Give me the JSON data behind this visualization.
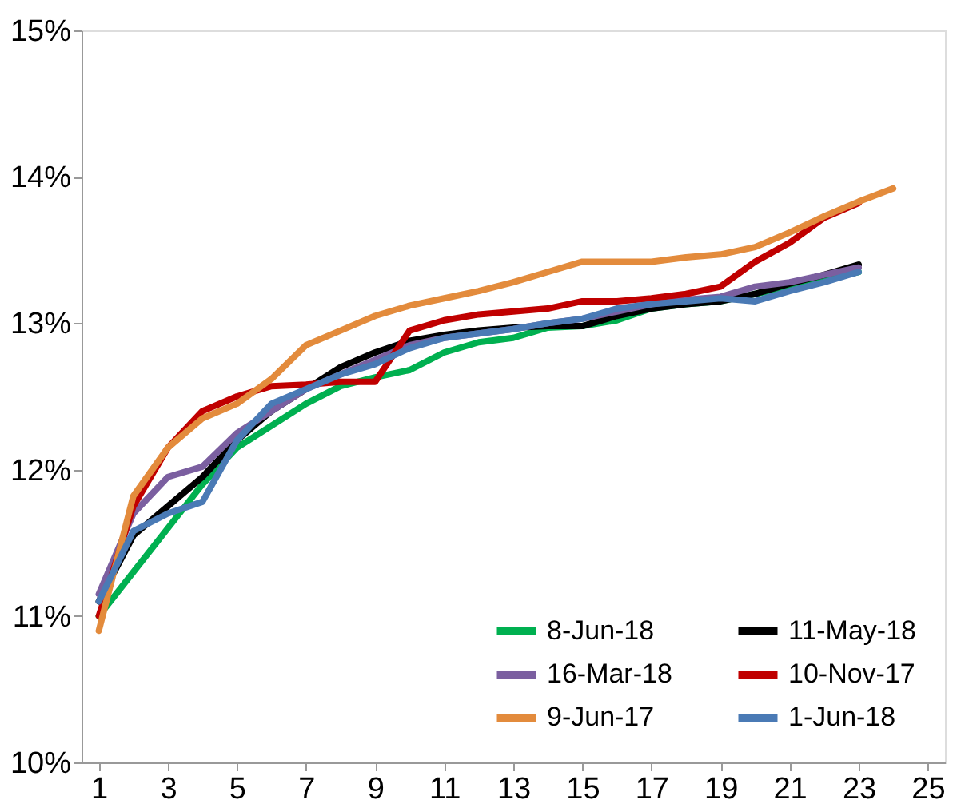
{
  "chart_data": {
    "type": "line",
    "x": [
      1,
      2,
      3,
      4,
      5,
      6,
      7,
      8,
      9,
      10,
      11,
      12,
      13,
      14,
      15,
      16,
      17,
      18,
      19,
      20,
      21,
      22,
      23
    ],
    "xlim": [
      0.5,
      25.5
    ],
    "xticks": [
      1,
      3,
      5,
      7,
      9,
      11,
      13,
      15,
      17,
      19,
      21,
      23,
      25
    ],
    "ylim": [
      10,
      15
    ],
    "yticks": [
      {
        "value": 10,
        "label": "10%"
      },
      {
        "value": 11,
        "label": "11%"
      },
      {
        "value": 12,
        "label": "12%"
      },
      {
        "value": 13,
        "label": "13%"
      },
      {
        "value": 14,
        "label": "14%"
      },
      {
        "value": 15,
        "label": "15%"
      }
    ],
    "grid": false,
    "legend": "bottom right",
    "marker": "none",
    "line_style": "solid",
    "series": [
      {
        "name": "8-Jun-18",
        "color": "#00b050",
        "values": [
          11.0,
          11.3,
          11.6,
          11.9,
          12.15,
          12.3,
          12.45,
          12.57,
          12.63,
          12.68,
          12.8,
          12.87,
          12.9,
          12.97,
          12.98,
          13.02,
          13.1,
          13.13,
          13.15,
          13.2,
          13.25,
          13.3,
          13.35
        ]
      },
      {
        "name": "11-May-18",
        "color": "#000000",
        "values": [
          11.1,
          11.55,
          11.75,
          11.95,
          12.2,
          12.4,
          12.55,
          12.7,
          12.8,
          12.88,
          12.92,
          12.95,
          12.97,
          12.98,
          12.98,
          13.05,
          13.1,
          13.13,
          13.15,
          13.2,
          13.27,
          13.33,
          13.4
        ]
      },
      {
        "name": "16-Mar-18",
        "color": "#7b5fa0",
        "values": [
          11.15,
          11.7,
          11.95,
          12.02,
          12.25,
          12.4,
          12.55,
          12.65,
          12.75,
          12.85,
          12.9,
          12.93,
          12.96,
          13.0,
          13.03,
          13.08,
          13.13,
          13.16,
          13.18,
          13.25,
          13.28,
          13.33,
          13.38
        ]
      },
      {
        "name": "10-Nov-17",
        "color": "#c00000",
        "values": [
          11.0,
          11.75,
          12.15,
          12.4,
          12.5,
          12.57,
          12.58,
          12.6,
          12.6,
          12.95,
          13.02,
          13.06,
          13.08,
          13.1,
          13.15,
          13.15,
          13.17,
          13.2,
          13.25,
          13.42,
          13.55,
          13.72,
          13.82
        ]
      },
      {
        "name": "9-Jun-17",
        "color": "#e38b3c",
        "x": [
          1,
          2,
          3,
          4,
          5,
          6,
          7,
          8,
          9,
          10,
          11,
          12,
          13,
          14,
          15,
          16,
          17,
          18,
          19,
          20,
          21,
          22,
          23,
          24
        ],
        "values": [
          10.9,
          11.82,
          12.15,
          12.35,
          12.45,
          12.62,
          12.85,
          12.95,
          13.05,
          13.12,
          13.17,
          13.22,
          13.28,
          13.35,
          13.42,
          13.42,
          13.42,
          13.45,
          13.47,
          13.52,
          13.62,
          13.73,
          13.83,
          13.92
        ]
      },
      {
        "name": "1-Jun-18",
        "color": "#4a7ab5",
        "values": [
          11.1,
          11.58,
          11.7,
          11.78,
          12.2,
          12.45,
          12.55,
          12.65,
          12.72,
          12.83,
          12.9,
          12.93,
          12.96,
          13.0,
          13.03,
          13.1,
          13.13,
          13.15,
          13.17,
          13.15,
          13.22,
          13.28,
          13.35
        ]
      }
    ]
  }
}
